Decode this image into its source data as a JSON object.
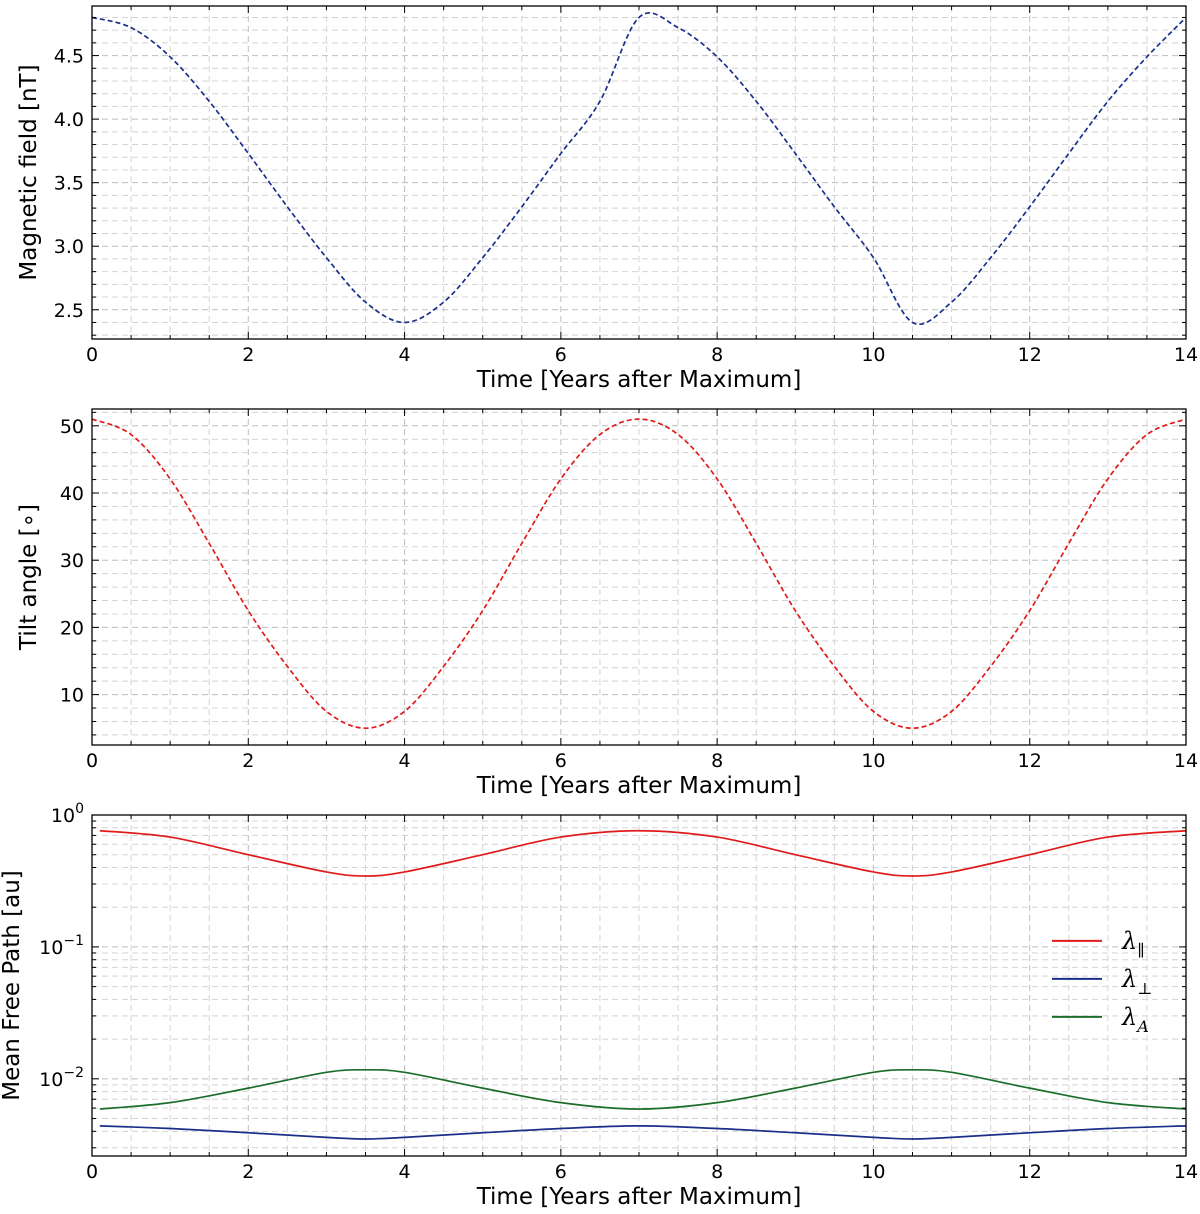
{
  "chart_data": [
    {
      "type": "line",
      "xlabel": "Time [Years after Maximum]",
      "ylabel": "Magnetic field [nT]",
      "xlim": [
        0,
        14
      ],
      "ylim": [
        2.27,
        4.89
      ],
      "yscale": "linear",
      "xticks": [
        0,
        2,
        4,
        6,
        8,
        10,
        12,
        14
      ],
      "yticks": [
        2.5,
        3.0,
        3.5,
        4.0,
        4.5
      ],
      "ytick_labels": [
        "2.5",
        "3.0",
        "3.5",
        "4.0",
        "4.5"
      ],
      "grid": true,
      "legend": false,
      "series": [
        {
          "color": "#1a2f8a",
          "linestyle": "dashed",
          "x": [
            0,
            0.5,
            1,
            1.5,
            2,
            2.5,
            3,
            3.5,
            4,
            4.5,
            5,
            5.5,
            6,
            6.5,
            7,
            7.5,
            8,
            8.5,
            9,
            9.5,
            10,
            10.5,
            11,
            11.5,
            12,
            12.5,
            13,
            13.5,
            14
          ],
          "y": [
            4.8,
            4.72,
            4.49,
            4.14,
            3.73,
            3.31,
            2.91,
            2.56,
            2.4,
            2.56,
            2.91,
            3.31,
            3.73,
            4.14,
            4.8,
            4.72,
            4.49,
            4.14,
            3.73,
            3.31,
            2.91,
            2.4,
            2.56,
            2.91,
            3.31,
            3.73,
            4.14,
            4.49,
            4.8
          ]
        }
      ]
    },
    {
      "type": "line",
      "xlabel": "Time [Years after Maximum]",
      "ylabel": "Tilt angle [∘]",
      "xlim": [
        0,
        14
      ],
      "ylim": [
        2.5,
        52.5
      ],
      "yscale": "linear",
      "xticks": [
        0,
        2,
        4,
        6,
        8,
        10,
        12,
        14
      ],
      "yticks": [
        10,
        20,
        30,
        40,
        50
      ],
      "ytick_labels": [
        "10",
        "20",
        "30",
        "40",
        "50"
      ],
      "grid": true,
      "legend": false,
      "series": [
        {
          "color": "#e01b1b",
          "linestyle": "dashed",
          "x": [
            0,
            0.5,
            1,
            1.5,
            2,
            2.5,
            3,
            3.5,
            4,
            4.5,
            5,
            5.5,
            6,
            6.5,
            7,
            7.5,
            8,
            8.5,
            9,
            9.5,
            10,
            10.5,
            11,
            11.5,
            12,
            12.5,
            13,
            13.5,
            14
          ],
          "y": [
            51,
            48.7,
            42.1,
            32.5,
            22.5,
            14.2,
            7.5,
            5,
            7.5,
            14.2,
            22.5,
            32.5,
            42.1,
            48.7,
            51,
            48.7,
            42.1,
            32.5,
            22.5,
            14.2,
            7.5,
            5,
            7.5,
            14.2,
            22.5,
            32.5,
            42.1,
            48.7,
            51
          ]
        }
      ]
    },
    {
      "type": "line",
      "xlabel": "Time [Years after Maximum]",
      "ylabel": "Mean Free Path [au]",
      "xlim": [
        0,
        14
      ],
      "ylim": [
        0.0026,
        1.0
      ],
      "yscale": "log",
      "xticks": [
        0,
        2,
        4,
        6,
        8,
        10,
        12,
        14
      ],
      "yticks": [
        0.01,
        0.1,
        1
      ],
      "ytick_labels": [
        "10",
        "10",
        "10"
      ],
      "ytick_exponents": [
        "−2",
        "−1",
        "0"
      ],
      "grid": true,
      "legend": true,
      "legend_position": "right",
      "series": [
        {
          "name": "λ",
          "name_sub": "∥",
          "color": "#e01b1b",
          "linestyle": "solid",
          "x": [
            0.1,
            1,
            2,
            3,
            3.5,
            4,
            5,
            6,
            7,
            8,
            9,
            10,
            10.5,
            11,
            12,
            13,
            14
          ],
          "y": [
            0.76,
            0.68,
            0.5,
            0.37,
            0.345,
            0.37,
            0.5,
            0.68,
            0.76,
            0.68,
            0.5,
            0.37,
            0.345,
            0.37,
            0.5,
            0.68,
            0.76
          ]
        },
        {
          "name": "λ",
          "name_sub": "⊥",
          "color": "#1a2f8a",
          "linestyle": "solid",
          "x": [
            0.1,
            1,
            2,
            3,
            3.5,
            4,
            5,
            6,
            7,
            8,
            9,
            10,
            10.5,
            11,
            12,
            13,
            14
          ],
          "y": [
            0.0044,
            0.0042,
            0.0039,
            0.0036,
            0.0035,
            0.0036,
            0.0039,
            0.0042,
            0.0044,
            0.0042,
            0.0039,
            0.0036,
            0.0035,
            0.0036,
            0.0039,
            0.0042,
            0.0044
          ]
        },
        {
          "name": "λ",
          "name_sub": "A",
          "color": "#1b6e2a",
          "linestyle": "solid",
          "x": [
            0.1,
            1,
            2,
            3,
            3.5,
            4,
            5,
            6,
            7,
            8,
            9,
            10,
            10.5,
            11,
            12,
            13,
            14
          ],
          "y": [
            0.0059,
            0.0066,
            0.0085,
            0.0112,
            0.0117,
            0.0112,
            0.0085,
            0.0066,
            0.0059,
            0.0066,
            0.0085,
            0.0112,
            0.0117,
            0.0112,
            0.0085,
            0.0066,
            0.0059
          ]
        }
      ]
    }
  ]
}
